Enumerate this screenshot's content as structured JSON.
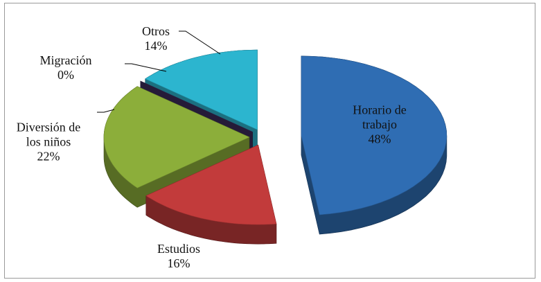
{
  "chart_data": {
    "type": "pie3d",
    "categories": [
      "Horario de trabajo",
      "Estudios",
      "Diversión de los niños",
      "Migración",
      "Otros"
    ],
    "values": [
      48,
      16,
      22,
      0,
      14
    ],
    "value_labels": [
      "48%",
      "16%",
      "22%",
      "0%",
      "14%"
    ],
    "colors": [
      "#2f6db3",
      "#c23b3b",
      "#8cae3a",
      "#3b2c5a",
      "#2cb5cf"
    ]
  }
}
